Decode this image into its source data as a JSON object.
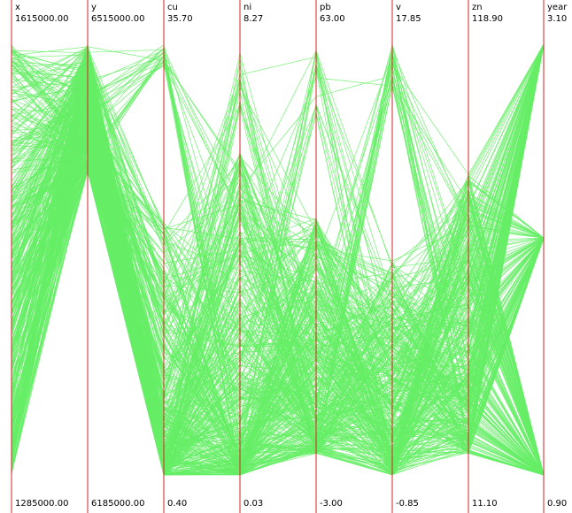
{
  "chart_data": {
    "type": "parallel_coordinates",
    "line_color": "#66ee66",
    "axis_color": "#d62020",
    "axes": [
      {
        "name": "x",
        "max": "1615000.00",
        "min": "1285000.00"
      },
      {
        "name": "y",
        "max": "6515000.00",
        "min": "6185000.00"
      },
      {
        "name": "cu",
        "max": "35.70",
        "min": "0.40"
      },
      {
        "name": "ni",
        "max": "8.27",
        "min": "0.03"
      },
      {
        "name": "pb",
        "max": "63.00",
        "min": "-3.00"
      },
      {
        "name": "v",
        "max": "17.85",
        "min": "-0.85"
      },
      {
        "name": "zn",
        "max": "118.90",
        "min": "11.10"
      },
      {
        "name": "year",
        "max": "3.10",
        "min": "0.90"
      }
    ]
  }
}
